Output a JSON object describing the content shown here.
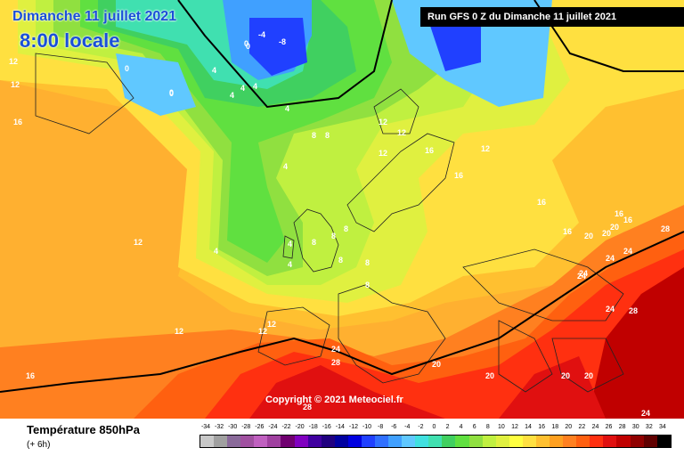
{
  "header": {
    "date_title": "Dimanche 11 juillet 2021",
    "time_title": "8:00 locale",
    "run_info": "Run GFS 0 Z du Dimanche 11 juillet 2021"
  },
  "copyright": "Copyright © 2021 Meteociel.fr",
  "legend": {
    "title": "Température 850hPa",
    "subtitle": "(+ 6h)",
    "ticks": [
      "-34",
      "-32",
      "-30",
      "-28",
      "-26",
      "-24",
      "-22",
      "-20",
      "-18",
      "-16",
      "-14",
      "-12",
      "-10",
      "-8",
      "-6",
      "-4",
      "-2",
      "0",
      "2",
      "4",
      "6",
      "8",
      "10",
      "12",
      "14",
      "16",
      "18",
      "20",
      "22",
      "24",
      "26",
      "28",
      "30",
      "32",
      "34"
    ],
    "colors": [
      "#c8c8c8",
      "#a0a0a0",
      "#8a6a9a",
      "#a050a0",
      "#c060c0",
      "#a040a0",
      "#700070",
      "#8000c0",
      "#4000a0",
      "#200080",
      "#0000a0",
      "#0000e0",
      "#2040ff",
      "#3070ff",
      "#40a0ff",
      "#60c8ff",
      "#40e0e0",
      "#40e0b0",
      "#40d060",
      "#60e040",
      "#90e040",
      "#c0f040",
      "#e0f040",
      "#ffff40",
      "#ffe040",
      "#ffc030",
      "#ffa020",
      "#ff8020",
      "#ff6010",
      "#ff3010",
      "#e01010",
      "#c00000",
      "#900000",
      "#600000",
      "#000000"
    ]
  },
  "map": {
    "isotherm_labels": [
      "-4",
      "-8",
      "0",
      "0",
      "0",
      "4",
      "4",
      "4",
      "0",
      "8",
      "4",
      "12",
      "12",
      "12",
      "16",
      "16",
      "16",
      "12",
      "8",
      "8",
      "4",
      "4",
      "4",
      "8",
      "8",
      "8",
      "12",
      "12",
      "16",
      "16",
      "16",
      "20",
      "20",
      "20",
      "24",
      "24",
      "24",
      "28",
      "28",
      "28",
      "24",
      "20",
      "20",
      "20",
      "20",
      "24",
      "12",
      "16",
      "12",
      "16",
      "12",
      "12",
      "4",
      "4",
      "0",
      "0",
      "8",
      "8",
      "28",
      "24",
      "24"
    ]
  }
}
